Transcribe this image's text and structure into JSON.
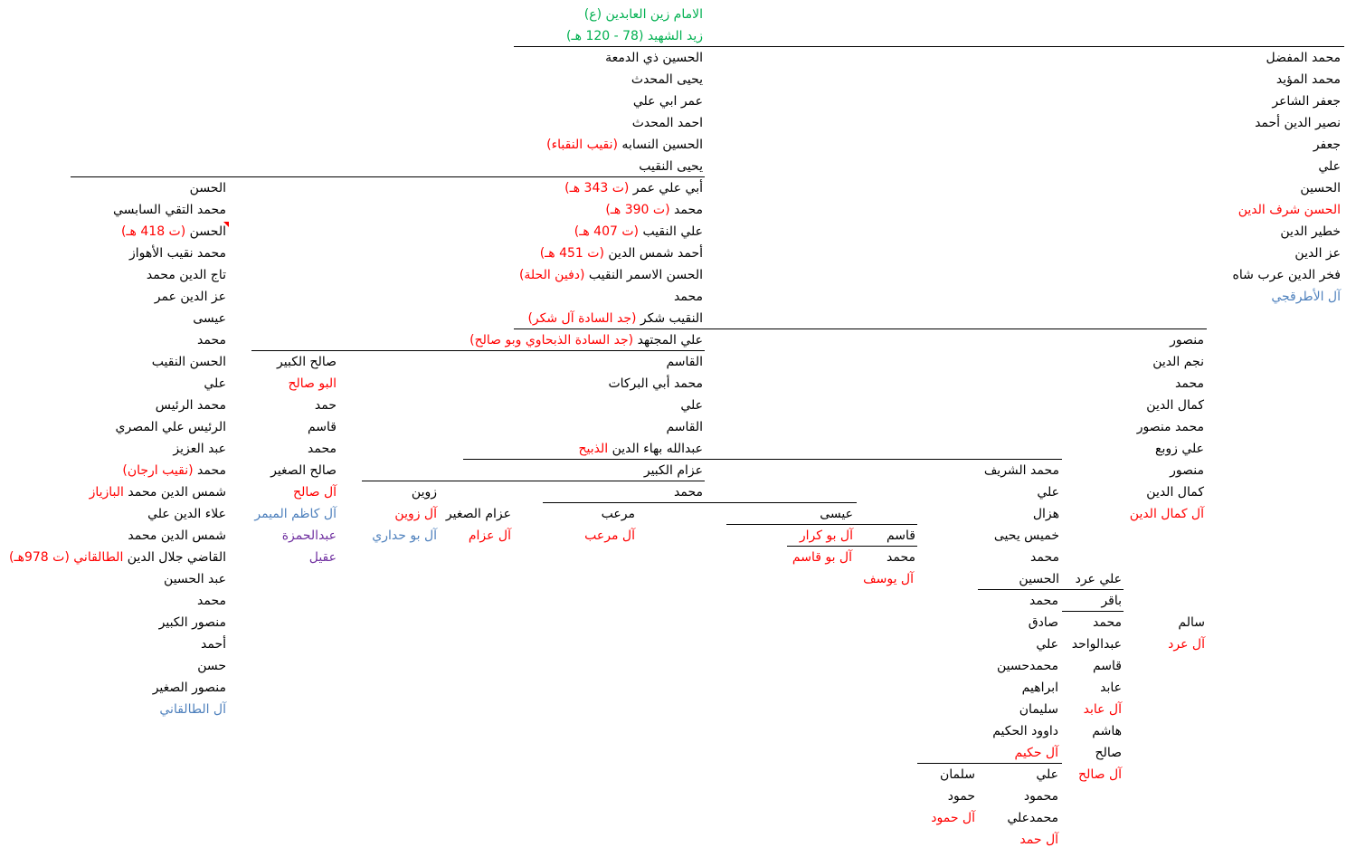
{
  "colors": {
    "k": "#000000",
    "r": "#ff0000",
    "g": "#00b050",
    "b": "#4f81bd",
    "p": "#7030a0"
  },
  "trunk": [
    [
      [
        {
          "t": "الامام زين العابدين (ع)",
          "c": "g"
        }
      ]
    ],
    [
      [
        {
          "t": "زيد الشهيد (78 - 120 هـ)",
          "c": "g"
        }
      ]
    ],
    [
      [
        {
          "t": "الحسين ذي الدمعة",
          "c": "k"
        }
      ]
    ],
    [
      [
        {
          "t": "يحيى المحدث",
          "c": "k"
        }
      ]
    ],
    [
      [
        {
          "t": "عمر ابي علي",
          "c": "k"
        }
      ]
    ],
    [
      [
        {
          "t": "احمد المحدث",
          "c": "k"
        }
      ]
    ],
    [
      [
        {
          "t": "الحسين النسابه ",
          "c": "k"
        },
        {
          "t": "(نقيب النقباء)",
          "c": "r"
        }
      ]
    ],
    [
      [
        {
          "t": "يحيى النقيب",
          "c": "k"
        }
      ]
    ],
    [
      [
        {
          "t": "أبي علي عمر ",
          "c": "k"
        },
        {
          "t": "(ت 343 هـ)",
          "c": "r"
        }
      ]
    ],
    [
      [
        {
          "t": "محمد ",
          "c": "k"
        },
        {
          "t": "(ت 390 هـ)",
          "c": "r"
        }
      ]
    ],
    [
      [
        {
          "t": "علي النقيب ",
          "c": "k"
        },
        {
          "t": "(ت 407 هـ)",
          "c": "r"
        }
      ]
    ],
    [
      [
        {
          "t": "أحمد شمس الدين ",
          "c": "k"
        },
        {
          "t": "(ت 451 هـ)",
          "c": "r"
        }
      ]
    ],
    [
      [
        {
          "t": "الحسن الاسمر النقيب ",
          "c": "k"
        },
        {
          "t": "(دفين الحلة)",
          "c": "r"
        }
      ]
    ],
    [
      [
        {
          "t": "محمد",
          "c": "k"
        }
      ]
    ],
    [
      [
        {
          "t": "النقيب شكر ",
          "c": "k"
        },
        {
          "t": "(جد السادة آل شكر)",
          "c": "r"
        }
      ]
    ],
    [
      [
        {
          "t": "علي المجتهد ",
          "c": "k"
        },
        {
          "t": "(جد السادة الذبحاوي وبو صالح)",
          "c": "r"
        }
      ]
    ],
    [
      [
        {
          "t": "القاسم",
          "c": "k"
        }
      ]
    ],
    [
      [
        {
          "t": "محمد أبي البركات",
          "c": "k"
        }
      ]
    ],
    [
      [
        {
          "t": "علي",
          "c": "k"
        }
      ]
    ],
    [
      [
        {
          "t": "القاسم",
          "c": "k"
        }
      ]
    ],
    [
      [
        {
          "t": "عبدالله بهاء الدين ",
          "c": "k"
        },
        {
          "t": "الذبيح",
          "c": "r"
        }
      ]
    ],
    [
      [
        {
          "t": "عزام الكبير",
          "c": "k"
        }
      ]
    ],
    [
      [
        {
          "t": "محمد",
          "c": "k"
        }
      ]
    ]
  ],
  "right_branch": [
    [
      [
        {
          "t": "محمد المفضل",
          "c": "k"
        }
      ]
    ],
    [
      [
        {
          "t": "محمد المؤيد",
          "c": "k"
        }
      ]
    ],
    [
      [
        {
          "t": "جعفر الشاعر",
          "c": "k"
        }
      ]
    ],
    [
      [
        {
          "t": "نصير الدين أحمد",
          "c": "k"
        }
      ]
    ],
    [
      [
        {
          "t": "جعفر",
          "c": "k"
        }
      ]
    ],
    [
      [
        {
          "t": "علي",
          "c": "k"
        }
      ]
    ],
    [
      [
        {
          "t": "الحسين",
          "c": "k"
        }
      ]
    ],
    [
      [
        {
          "t": "الحسن شرف الدين",
          "c": "r"
        }
      ]
    ],
    [
      [
        {
          "t": "خطير الدين",
          "c": "k"
        }
      ]
    ],
    [
      [
        {
          "t": "عز الدين",
          "c": "k"
        }
      ]
    ],
    [
      [
        {
          "t": "فخر الدين عرب شاه",
          "c": "k"
        }
      ]
    ],
    [
      [
        {
          "t": "آل الأطرقجي",
          "c": "b"
        }
      ]
    ]
  ],
  "mansour_branch": [
    [
      [
        {
          "t": "منصور",
          "c": "k"
        }
      ]
    ],
    [
      [
        {
          "t": "نجم الدين",
          "c": "k"
        }
      ]
    ],
    [
      [
        {
          "t": "محمد",
          "c": "k"
        }
      ]
    ],
    [
      [
        {
          "t": "كمال الدين",
          "c": "k"
        }
      ]
    ],
    [
      [
        {
          "t": "محمد منصور",
          "c": "k"
        }
      ]
    ],
    [
      [
        {
          "t": "علي زوبع",
          "c": "k"
        }
      ]
    ],
    [
      [
        {
          "t": "منصور",
          "c": "k"
        }
      ]
    ],
    [
      [
        {
          "t": "كمال الدين",
          "c": "k"
        }
      ]
    ],
    [
      [
        {
          "t": "آل كمال الدين",
          "c": "r"
        }
      ]
    ]
  ],
  "left_branch": [
    [
      [
        {
          "t": "الحسن",
          "c": "k"
        }
      ]
    ],
    [
      [
        {
          "t": "محمد التقي السابسي",
          "c": "k"
        }
      ]
    ],
    [
      [
        {
          "t": "الحسن ",
          "c": "k"
        },
        {
          "t": "(ت 418 هـ)",
          "c": "r"
        }
      ]
    ],
    [
      [
        {
          "t": "محمد نقيب الأهواز",
          "c": "k"
        }
      ]
    ],
    [
      [
        {
          "t": "تاج الدين محمد",
          "c": "k"
        }
      ]
    ],
    [
      [
        {
          "t": "عز الدين عمر",
          "c": "k"
        }
      ]
    ],
    [
      [
        {
          "t": "عيسى",
          "c": "k"
        }
      ]
    ],
    [
      [
        {
          "t": "محمد",
          "c": "k"
        }
      ]
    ],
    [
      [
        {
          "t": "الحسن النقيب",
          "c": "k"
        }
      ]
    ],
    [
      [
        {
          "t": "علي",
          "c": "k"
        }
      ]
    ],
    [
      [
        {
          "t": "محمد الرئيس",
          "c": "k"
        }
      ]
    ],
    [
      [
        {
          "t": "الرئيس علي المصري",
          "c": "k"
        }
      ]
    ],
    [
      [
        {
          "t": "عبد العزيز",
          "c": "k"
        }
      ]
    ],
    [
      [
        {
          "t": "محمد ",
          "c": "k"
        },
        {
          "t": "(نقيب ارجان)",
          "c": "r"
        }
      ]
    ],
    [
      [
        {
          "t": "شمس الدين محمد ",
          "c": "k"
        },
        {
          "t": "البازياز",
          "c": "r"
        }
      ]
    ],
    [
      [
        {
          "t": "علاء الدين علي",
          "c": "k"
        }
      ]
    ],
    [
      [
        {
          "t": "شمس الدين محمد",
          "c": "k"
        }
      ]
    ],
    [
      [
        {
          "t": "القاضي جلال الدين ",
          "c": "k"
        },
        {
          "t": "الطالقاني",
          "c": "r"
        },
        {
          "t": "   (ت 978هـ)",
          "c": "r"
        }
      ]
    ],
    [
      [
        {
          "t": "عبد الحسين",
          "c": "k"
        }
      ]
    ],
    [
      [
        {
          "t": "محمد",
          "c": "k"
        }
      ]
    ],
    [
      [
        {
          "t": "منصور الكبير",
          "c": "k"
        }
      ]
    ],
    [
      [
        {
          "t": "أحمد",
          "c": "k"
        }
      ]
    ],
    [
      [
        {
          "t": "حسن",
          "c": "k"
        }
      ]
    ],
    [
      [
        {
          "t": "منصور الصغير",
          "c": "k"
        }
      ]
    ],
    [
      [
        {
          "t": "آل الطالقاني",
          "c": "b"
        }
      ]
    ]
  ],
  "saleh_branch": [
    [
      [
        {
          "t": "صالح الكبير",
          "c": "k"
        }
      ]
    ],
    [
      [
        {
          "t": "البو صالح",
          "c": "r"
        }
      ]
    ],
    [
      [
        {
          "t": "حمد",
          "c": "k"
        }
      ]
    ],
    [
      [
        {
          "t": "قاسم",
          "c": "k"
        }
      ]
    ],
    [
      [
        {
          "t": "محمد",
          "c": "k"
        }
      ]
    ],
    [
      [
        {
          "t": "صالح الصغير",
          "c": "k"
        }
      ]
    ],
    [
      [
        {
          "t": "آل صالح",
          "c": "r"
        }
      ]
    ],
    [
      [
        {
          "t": "آل كاظم الميمر",
          "c": "b"
        }
      ]
    ],
    [
      [
        {
          "t": "عبدالحمزة",
          "c": "p"
        }
      ]
    ],
    [
      [
        {
          "t": "عقيل",
          "c": "p"
        }
      ]
    ]
  ],
  "zawin_branch": [
    [
      [
        {
          "t": "زوين",
          "c": "k"
        }
      ]
    ],
    [
      [
        {
          "t": "آل زوين",
          "c": "r"
        }
      ]
    ],
    [
      [
        {
          "t": "آل بو حداري",
          "c": "b"
        }
      ]
    ]
  ],
  "azzam_small_branch": [
    [
      [
        {
          "t": "عزام الصغير",
          "c": "k"
        }
      ]
    ],
    [
      [
        {
          "t": "آل عزام",
          "c": "r"
        }
      ]
    ]
  ],
  "marab_branch": [
    [
      [
        {
          "t": "مرعب",
          "c": "k"
        }
      ]
    ],
    [
      [
        {
          "t": "آل مرعب",
          "c": "r"
        }
      ]
    ]
  ],
  "isa_branch": [
    [
      [
        {
          "t": "عيسى",
          "c": "k"
        }
      ]
    ],
    [
      [
        {
          "t": "آل بو كرار",
          "c": "r"
        }
      ]
    ]
  ],
  "qasim_branch": [
    [
      [
        {
          "t": "قاسم",
          "c": "k"
        }
      ]
    ],
    [
      [
        {
          "t": "محمد",
          "c": "k"
        }
      ]
    ]
  ],
  "abu_qasim_branch": [
    [
      [
        {
          "t": "آل بو قاسم",
          "c": "r"
        }
      ]
    ]
  ],
  "yusuf_branch": [
    [
      [
        {
          "t": "آل يوسف",
          "c": "r"
        }
      ]
    ]
  ],
  "sharif_branch": [
    [
      [
        {
          "t": "محمد الشريف",
          "c": "k"
        }
      ]
    ],
    [
      [
        {
          "t": "علي",
          "c": "k"
        }
      ]
    ],
    [
      [
        {
          "t": "هزال",
          "c": "k"
        }
      ]
    ],
    [
      [
        {
          "t": "خميس يحيى",
          "c": "k"
        }
      ]
    ],
    [
      [
        {
          "t": "محمد",
          "c": "k"
        }
      ]
    ],
    [
      [
        {
          "t": "الحسين",
          "c": "k"
        }
      ]
    ]
  ],
  "hakim_branch": [
    [
      [
        {
          "t": "محمد",
          "c": "k"
        }
      ]
    ],
    [
      [
        {
          "t": "صادق",
          "c": "k"
        }
      ]
    ],
    [
      [
        {
          "t": "علي",
          "c": "k"
        }
      ]
    ],
    [
      [
        {
          "t": "محمدحسين",
          "c": "k"
        }
      ]
    ],
    [
      [
        {
          "t": "ابراهيم",
          "c": "k"
        }
      ]
    ],
    [
      [
        {
          "t": "سليمان",
          "c": "k"
        }
      ]
    ],
    [
      [
        {
          "t": "داوود الحكيم",
          "c": "k"
        }
      ]
    ],
    [
      [
        {
          "t": "آل حكيم",
          "c": "r"
        }
      ]
    ]
  ],
  "ali_ard_branch": [
    [
      [
        {
          "t": "علي عرد",
          "c": "k"
        }
      ]
    ],
    [
      [
        {
          "t": "باقر",
          "c": "k"
        }
      ]
    ],
    [
      [
        {
          "t": "محمد",
          "c": "k"
        }
      ]
    ],
    [
      [
        {
          "t": "عبدالواحد",
          "c": "k"
        }
      ]
    ],
    [
      [
        {
          "t": "قاسم",
          "c": "k"
        }
      ]
    ],
    [
      [
        {
          "t": "عابد",
          "c": "k"
        }
      ]
    ],
    [
      [
        {
          "t": "آل عابد",
          "c": "r"
        }
      ]
    ],
    [
      [
        {
          "t": "هاشم",
          "c": "k"
        }
      ]
    ],
    [
      [
        {
          "t": "صالح",
          "c": "k"
        }
      ]
    ],
    [
      [
        {
          "t": "آل صالح",
          "c": "r"
        }
      ]
    ]
  ],
  "salem_branch": [
    [
      [
        {
          "t": "سالم",
          "c": "k"
        }
      ]
    ],
    [
      [
        {
          "t": "آل عرد",
          "c": "r"
        }
      ]
    ]
  ],
  "hamd_branch": [
    [
      [
        {
          "t": "علي",
          "c": "k"
        }
      ]
    ],
    [
      [
        {
          "t": "محمود",
          "c": "k"
        }
      ]
    ],
    [
      [
        {
          "t": "محمدعلي",
          "c": "k"
        }
      ]
    ],
    [
      [
        {
          "t": "آل حمد",
          "c": "r"
        }
      ]
    ]
  ],
  "salman_branch": [
    [
      [
        {
          "t": "سلمان",
          "c": "k"
        }
      ]
    ],
    [
      [
        {
          "t": "حمود",
          "c": "k"
        }
      ]
    ],
    [
      [
        {
          "t": "آل حمود",
          "c": "r"
        }
      ]
    ]
  ]
}
